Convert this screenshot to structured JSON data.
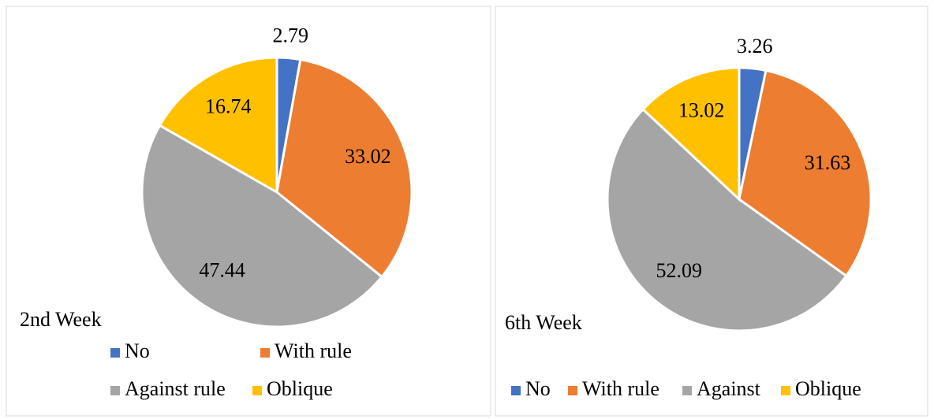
{
  "chart_data": [
    {
      "type": "pie",
      "title": "2nd Week",
      "series": [
        {
          "name": "No",
          "color": "#4472c4",
          "value": 2.79
        },
        {
          "name": "With rule",
          "color": "#ed7d31",
          "value": 33.02
        },
        {
          "name": "Against rule",
          "color": "#a5a5a5",
          "value": 47.44
        },
        {
          "name": "Oblique",
          "color": "#ffc000",
          "value": 16.74
        }
      ]
    },
    {
      "type": "pie",
      "title": "6th Week",
      "series": [
        {
          "name": "No",
          "color": "#4472c4",
          "value": 3.26
        },
        {
          "name": "With rule",
          "color": "#ed7d31",
          "value": 31.63
        },
        {
          "name": "Against",
          "color": "#a5a5a5",
          "value": 52.09
        },
        {
          "name": "Oblique",
          "color": "#ffc000",
          "value": 13.02
        }
      ]
    }
  ]
}
